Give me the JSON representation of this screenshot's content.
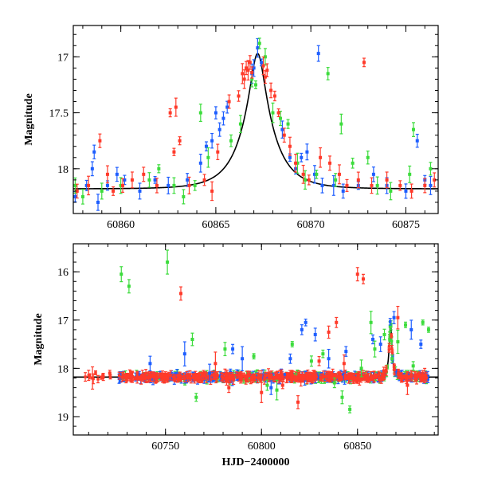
{
  "colors": {
    "blue": "#1e5eff",
    "green": "#3cdc3c",
    "red": "#ff3a2a",
    "model": "#000000"
  },
  "chart_data": [
    {
      "type": "scatter",
      "panel": "top",
      "xlabel": "",
      "ylabel": "Magnitude",
      "xlim": [
        60857.5,
        60876.7
      ],
      "ylim": [
        18.4,
        16.72
      ],
      "y_inverted": true,
      "xticks": [
        60860,
        60865,
        60870,
        60875
      ],
      "xtick_labels": [
        "60860",
        "60865",
        "60870",
        "60875"
      ],
      "yticks": [
        17,
        17.5,
        18
      ],
      "ytick_labels": [
        "17",
        "17.5",
        "18"
      ],
      "model": {
        "peak_time": 60867.2,
        "baseline_mag": 18.18,
        "peak_mag": 16.97
      },
      "series": [
        {
          "color": "blue",
          "points": [
            [
              60857.6,
              18.25
            ],
            [
              60858.2,
              18.15
            ],
            [
              60858.5,
              18.0
            ],
            [
              60858.6,
              17.85
            ],
            [
              60858.8,
              18.3
            ],
            [
              60859.3,
              18.15
            ],
            [
              60859.8,
              18.05
            ],
            [
              60860.2,
              18.1
            ],
            [
              60861.0,
              18.2
            ],
            [
              60861.8,
              18.1
            ],
            [
              60862.5,
              18.15
            ],
            [
              60863.5,
              18.1
            ],
            [
              60864.2,
              17.95
            ],
            [
              60864.5,
              17.8
            ],
            [
              60864.8,
              17.75
            ],
            [
              60865.0,
              17.5
            ],
            [
              60865.2,
              17.65
            ],
            [
              60865.4,
              17.55
            ],
            [
              60865.6,
              17.45
            ],
            [
              60866.9,
              17.15
            ],
            [
              60867.0,
              17.1
            ],
            [
              60867.2,
              16.92
            ],
            [
              60867.4,
              17.05
            ],
            [
              60868.5,
              17.65
            ],
            [
              60868.9,
              17.9
            ],
            [
              60869.2,
              18.0
            ],
            [
              60869.5,
              17.9
            ],
            [
              60869.8,
              17.85
            ],
            [
              60870.2,
              18.05
            ],
            [
              60870.4,
              16.97
            ],
            [
              60870.6,
              18.15
            ],
            [
              60871.2,
              18.15
            ],
            [
              60871.7,
              18.2
            ],
            [
              60872.5,
              18.15
            ],
            [
              60873.3,
              18.05
            ],
            [
              60874.0,
              18.15
            ],
            [
              60875.0,
              18.2
            ],
            [
              60875.6,
              17.75
            ],
            [
              60876.0,
              18.1
            ],
            [
              60876.3,
              18.15
            ]
          ]
        },
        {
          "color": "green",
          "points": [
            [
              60857.6,
              18.15
            ],
            [
              60858.0,
              18.25
            ],
            [
              60859.0,
              18.2
            ],
            [
              60860.0,
              18.15
            ],
            [
              60861.5,
              18.1
            ],
            [
              60862.0,
              18.0
            ],
            [
              60862.8,
              18.15
            ],
            [
              60863.3,
              18.25
            ],
            [
              60863.9,
              18.15
            ],
            [
              60864.2,
              17.5
            ],
            [
              60864.6,
              17.9
            ],
            [
              60865.8,
              17.75
            ],
            [
              60866.3,
              17.6
            ],
            [
              60866.9,
              17.2
            ],
            [
              60867.1,
              17.25
            ],
            [
              60867.3,
              16.88
            ],
            [
              60867.6,
              17.0
            ],
            [
              60868.0,
              17.5
            ],
            [
              60868.4,
              17.55
            ],
            [
              60868.8,
              17.6
            ],
            [
              60869.3,
              17.95
            ],
            [
              60869.7,
              18.1
            ],
            [
              60870.3,
              18.05
            ],
            [
              60870.9,
              17.15
            ],
            [
              60871.3,
              18.1
            ],
            [
              60871.6,
              17.6
            ],
            [
              60872.2,
              17.95
            ],
            [
              60873.0,
              17.9
            ],
            [
              60873.5,
              18.15
            ],
            [
              60874.2,
              18.2
            ],
            [
              60875.2,
              18.05
            ],
            [
              60875.4,
              17.65
            ],
            [
              60876.3,
              18.0
            ]
          ]
        },
        {
          "color": "red",
          "points": [
            [
              60857.7,
              18.2
            ],
            [
              60858.3,
              18.15
            ],
            [
              60858.9,
              17.75
            ],
            [
              60859.3,
              18.05
            ],
            [
              60859.6,
              18.2
            ],
            [
              60860.1,
              18.15
            ],
            [
              60860.6,
              18.1
            ],
            [
              60861.2,
              18.05
            ],
            [
              60861.9,
              18.15
            ],
            [
              60862.6,
              17.5
            ],
            [
              60862.9,
              17.45
            ],
            [
              60862.8,
              17.85
            ],
            [
              60863.1,
              17.75
            ],
            [
              60863.6,
              18.15
            ],
            [
              60864.4,
              18.1
            ],
            [
              60864.8,
              18.2
            ],
            [
              60865.1,
              17.85
            ],
            [
              60865.7,
              17.4
            ],
            [
              60866.2,
              17.35
            ],
            [
              60866.4,
              17.15
            ],
            [
              60866.5,
              17.2
            ],
            [
              60866.6,
              17.1
            ],
            [
              60866.7,
              17.12
            ],
            [
              60866.8,
              17.05
            ],
            [
              60866.9,
              17.14
            ],
            [
              60867.5,
              17.08
            ],
            [
              60867.6,
              17.18
            ],
            [
              60867.7,
              17.12
            ],
            [
              60867.9,
              17.3
            ],
            [
              60868.1,
              17.35
            ],
            [
              60868.3,
              17.5
            ],
            [
              60868.6,
              17.7
            ],
            [
              60868.9,
              17.8
            ],
            [
              60869.2,
              17.95
            ],
            [
              60869.6,
              18.05
            ],
            [
              60869.9,
              18.1
            ],
            [
              60870.5,
              17.9
            ],
            [
              60871.0,
              17.95
            ],
            [
              60871.5,
              18.05
            ],
            [
              60871.9,
              18.15
            ],
            [
              60872.5,
              18.1
            ],
            [
              60872.8,
              17.05
            ],
            [
              60873.2,
              18.15
            ],
            [
              60874.0,
              18.1
            ],
            [
              60874.7,
              18.15
            ],
            [
              60875.3,
              18.2
            ],
            [
              60876.0,
              18.15
            ],
            [
              60876.5,
              18.1
            ]
          ]
        }
      ]
    },
    {
      "type": "scatter",
      "panel": "bottom",
      "xlabel": "HJD−2400000",
      "ylabel": "Magnitude",
      "xlim": [
        60702,
        60892
      ],
      "ylim": [
        19.38,
        15.42
      ],
      "y_inverted": true,
      "xticks": [
        60750,
        60800,
        60850
      ],
      "xtick_labels": [
        "60750",
        "60800",
        "60850"
      ],
      "yticks": [
        16,
        17,
        18,
        19
      ],
      "ytick_labels": [
        "16",
        "17",
        "18",
        "19"
      ],
      "model": {
        "peak_time": 60867.2,
        "baseline_mag": 18.18,
        "peak_mag": 16.97
      },
      "outliers": {
        "blue": [
          [
            60742,
            17.9
          ],
          [
            60760,
            17.7
          ],
          [
            60773,
            18.1
          ],
          [
            60785,
            17.6
          ],
          [
            60790,
            17.8
          ],
          [
            60805,
            18.4
          ],
          [
            60815,
            17.8
          ],
          [
            60821,
            17.2
          ],
          [
            60823,
            17.05
          ],
          [
            60828,
            17.3
          ],
          [
            60835,
            17.8
          ],
          [
            60844,
            17.65
          ],
          [
            60858,
            17.4
          ],
          [
            60862,
            17.5
          ],
          [
            60869,
            16.95
          ],
          [
            60878,
            17.2
          ],
          [
            60883,
            17.5
          ]
        ],
        "green": [
          [
            60727,
            16.05
          ],
          [
            60731,
            16.3
          ],
          [
            60751,
            15.8
          ],
          [
            60764,
            17.4
          ],
          [
            60766,
            18.6
          ],
          [
            60781,
            17.6
          ],
          [
            60796,
            17.75
          ],
          [
            60803,
            18.35
          ],
          [
            60808,
            18.45
          ],
          [
            60816,
            17.5
          ],
          [
            60826,
            17.85
          ],
          [
            60832,
            17.7
          ],
          [
            60838,
            18.3
          ],
          [
            60842,
            18.6
          ],
          [
            60846,
            18.85
          ],
          [
            60852,
            18.0
          ],
          [
            60857,
            17.05
          ],
          [
            60859,
            17.6
          ],
          [
            60864,
            17.3
          ],
          [
            60868,
            17.8
          ],
          [
            60871,
            17.45
          ],
          [
            60875,
            17.1
          ],
          [
            60879,
            17.95
          ],
          [
            60884,
            17.05
          ],
          [
            60887,
            17.2
          ]
        ],
        "red": [
          [
            60712,
            18.2
          ],
          [
            60721,
            18.1
          ],
          [
            60758,
            16.45
          ],
          [
            60776,
            17.9
          ],
          [
            60783,
            18.4
          ],
          [
            60800,
            18.5
          ],
          [
            60811,
            18.35
          ],
          [
            60819,
            18.7
          ],
          [
            60830,
            17.85
          ],
          [
            60835,
            17.25
          ],
          [
            60839,
            17.05
          ],
          [
            60843,
            17.9
          ],
          [
            60850,
            16.05
          ],
          [
            60853,
            16.15
          ],
          [
            60871,
            16.95
          ],
          [
            60876,
            18.35
          ],
          [
            60885,
            18.15
          ]
        ]
      }
    }
  ]
}
